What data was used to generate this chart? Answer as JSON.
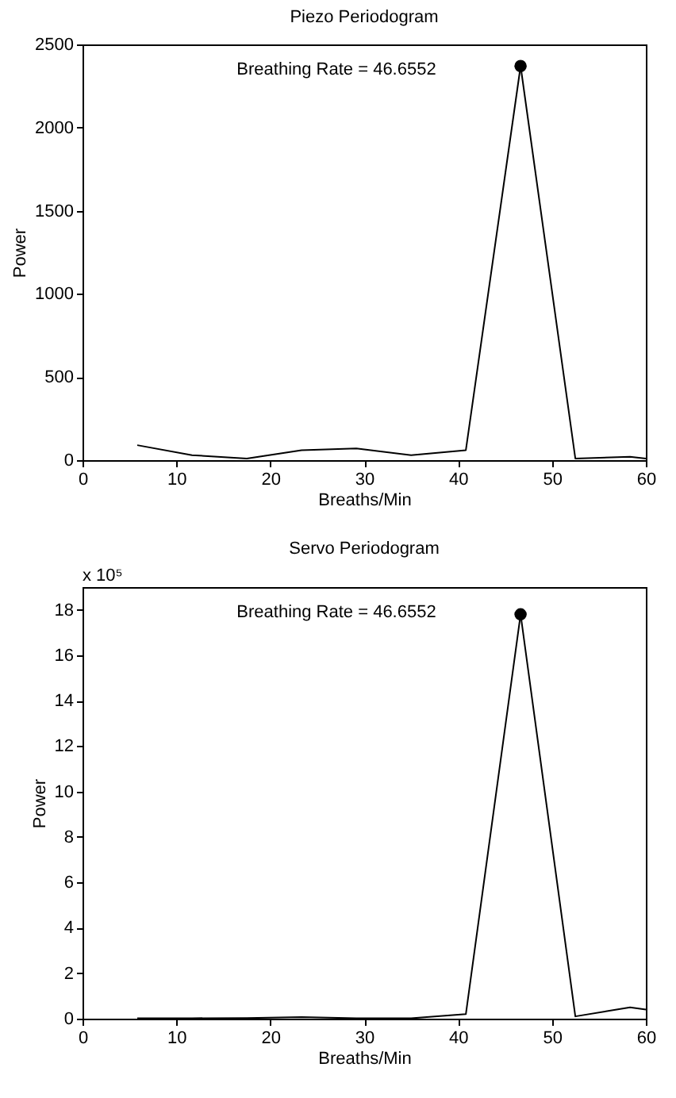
{
  "chart_data": [
    {
      "type": "line",
      "title": "Piezo Periodogram",
      "xlabel": "Breaths/Min",
      "ylabel": "Power",
      "xlim": [
        0,
        60
      ],
      "xticks": [
        0,
        10,
        20,
        30,
        40,
        50,
        60
      ],
      "ylim": [
        0,
        2500
      ],
      "yticks": [
        0,
        500,
        1000,
        1500,
        2000,
        2500
      ],
      "grid": false,
      "annotations": [
        "Breathing Rate = 46.6552"
      ],
      "series": [
        {
          "color": "#000000",
          "x": [
            5.83,
            11.66,
            17.5,
            23.33,
            29.16,
            35.0,
            40.83,
            46.66,
            52.49,
            58.32,
            60
          ],
          "values": [
            90,
            30,
            10,
            60,
            70,
            30,
            60,
            2370,
            10,
            20,
            10
          ]
        },
        {
          "type": "scatter",
          "marker": "circle",
          "color": "#000000",
          "x": [
            46.6552
          ],
          "values": [
            2370
          ]
        }
      ]
    },
    {
      "type": "line",
      "title": "Servo Periodogram",
      "xlabel": "Breaths/Min",
      "ylabel": "Power",
      "xlim": [
        0,
        60
      ],
      "xticks": [
        0,
        10,
        20,
        30,
        40,
        50,
        60
      ],
      "ylim": [
        0,
        19
      ],
      "yticks": [
        0,
        2,
        4,
        6,
        8,
        10,
        12,
        14,
        16,
        18
      ],
      "grid": false,
      "annotations": [
        "x 10⁵",
        "Breathing Rate = 46.6552"
      ],
      "series": [
        {
          "color": "#000000",
          "x": [
            5.83,
            11.66,
            17.5,
            23.33,
            29.16,
            35.0,
            40.83,
            46.66,
            52.49,
            58.32,
            60
          ],
          "values": [
            0.02,
            0.02,
            0.03,
            0.07,
            0.02,
            0.02,
            0.2,
            17.8,
            0.1,
            0.5,
            0.4
          ]
        },
        {
          "type": "scatter",
          "marker": "circle",
          "color": "#000000",
          "x": [
            46.6552
          ],
          "values": [
            17.8
          ]
        }
      ]
    }
  ]
}
